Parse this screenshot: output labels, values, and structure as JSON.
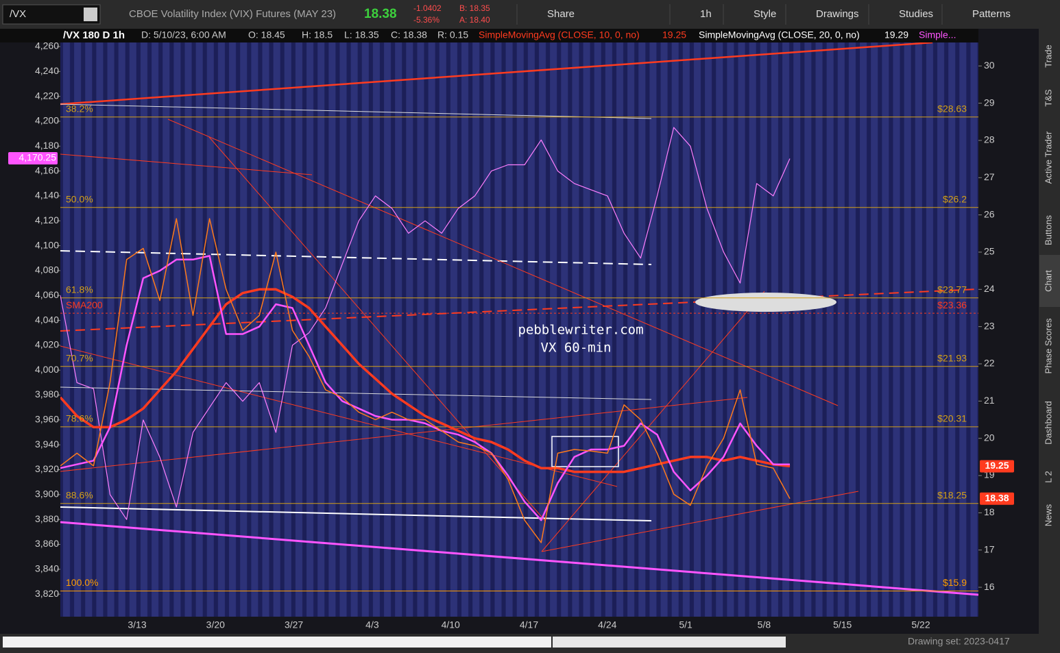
{
  "toolbar": {
    "symbol": "/VX",
    "description": "CBOE Volatility Index (VIX) Futures (MAY 23)",
    "last": "18.38",
    "change": "-1.0402",
    "change_pct": "-5.36%",
    "bid": "B: 18.35",
    "ask": "A: 18.40",
    "buttons": [
      "Share",
      "1h",
      "Style",
      "Drawings",
      "Studies",
      "Patterns"
    ]
  },
  "info_bar": {
    "symbol": "/VX 180 D 1h",
    "items": [
      "D: 5/10/23, 6:00 AM",
      "O: 18.45",
      "H: 18.5",
      "L: 18.35",
      "C: 18.38",
      "R: 0.15"
    ],
    "studies": [
      {
        "label": "SimpleMovingAvg (CLOSE, 10, 0, no)",
        "value": "19.25"
      },
      {
        "label": "SimpleMovingAvg (CLOSE, 20, 0, no)",
        "value": "19.29"
      }
    ],
    "more": "Simple..."
  },
  "side_tabs": [
    "Trade",
    "T&S",
    "Active Trader",
    "Buttons",
    "Chart",
    "Phase Scores",
    "Dashboard",
    "L 2",
    "News"
  ],
  "footer": {
    "drawing_set": "Drawing set: 2023-0417"
  },
  "chart_data": {
    "type": "line",
    "annotations": [
      "pebblewriter.com",
      "VX 60-min"
    ],
    "xticks": [
      "3/13",
      "3/20",
      "3/27",
      "4/3",
      "4/10",
      "4/17",
      "4/24",
      "5/1",
      "5/8",
      "5/15",
      "5/22"
    ],
    "ylim": [
      15.21,
      30.63
    ],
    "yticks": [
      16,
      17,
      18,
      19,
      20,
      21,
      22,
      23,
      24,
      25,
      26,
      27,
      28,
      29,
      30
    ],
    "y2lim": [
      3801.9,
      4263.3
    ],
    "y2ticks": [
      {
        "value": 3820,
        "label": "3,820"
      },
      {
        "value": 3840,
        "label": "3,840"
      },
      {
        "value": 3860,
        "label": "3,860"
      },
      {
        "value": 3880,
        "label": "3,880"
      },
      {
        "value": 3900,
        "label": "3,900"
      },
      {
        "value": 3920,
        "label": "3,920"
      },
      {
        "value": 3940,
        "label": "3,940"
      },
      {
        "value": 3960,
        "label": "3,960"
      },
      {
        "value": 3980,
        "label": "3,980"
      },
      {
        "value": 4000,
        "label": "4,000"
      },
      {
        "value": 4020,
        "label": "4,020"
      },
      {
        "value": 4040,
        "label": "4,040"
      },
      {
        "value": 4060,
        "label": "4,060"
      },
      {
        "value": 4080,
        "label": "4,080"
      },
      {
        "value": 4100,
        "label": "4,100"
      },
      {
        "value": 4120,
        "label": "4,120"
      },
      {
        "value": 4140,
        "label": "4,140"
      },
      {
        "value": 4160,
        "label": "4,160"
      },
      {
        "value": 4180,
        "label": "4,180"
      },
      {
        "value": 4200,
        "label": "4,200"
      },
      {
        "value": 4220,
        "label": "4,220"
      },
      {
        "value": 4240,
        "label": "4,240"
      },
      {
        "value": 4260,
        "label": "4,260"
      }
    ],
    "levels": [
      {
        "name": "38.2%",
        "value": 28.63,
        "value_label": "$28.63",
        "color": "#d4a017"
      },
      {
        "name": "50.0%",
        "value": 26.2,
        "value_label": "$26.2",
        "color": "#d4a017"
      },
      {
        "name": "61.8%",
        "value": 23.77,
        "value_label": "$23.77",
        "color": "#d4a017"
      },
      {
        "name": "SMA200",
        "value": 23.36,
        "value_label": "$23.36",
        "color": "#ff3b1f"
      },
      {
        "name": "70.7%",
        "value": 21.93,
        "value_label": "$21.93",
        "color": "#d4a017"
      },
      {
        "name": "78.6%",
        "value": 20.31,
        "value_label": "$20.31",
        "color": "#d4a017"
      },
      {
        "name": "88.6%",
        "value": 18.25,
        "value_label": "$18.25",
        "color": "#d4a017"
      },
      {
        "name": "100.0%",
        "value": 15.9,
        "value_label": "$15.9",
        "color": "#ff9d00"
      }
    ],
    "price_tags": [
      {
        "value": 19.25,
        "color": "#ff3b1f"
      },
      {
        "value": 18.38,
        "color": "#ff3b1f"
      },
      {
        "value": {
          "value": 4170.25,
          "label": "4,170.25"
        },
        "color": "#ff55ff",
        "axis": "y2"
      }
    ],
    "series": [
      {
        "color": "#ff7fff",
        "width": 1.2,
        "axis": "y2",
        "values": [
          4060,
          3990,
          3985,
          3900,
          3880,
          3960,
          3930,
          3890,
          3950,
          3970,
          3990,
          3975,
          3990,
          3950,
          4020,
          4030,
          4050,
          4085,
          4120,
          4140,
          4130,
          4110,
          4120,
          4110,
          4130,
          4140,
          4160,
          4165,
          4165,
          4185,
          4160,
          4150,
          4145,
          4140,
          4110,
          4090,
          4140,
          4195,
          4180,
          4130,
          4095,
          4070,
          4150,
          4140,
          4170
        ]
      },
      {
        "color": "#ff3b1f",
        "width": 3.5,
        "values": [
          21.1,
          20.6,
          20.3,
          20.3,
          20.5,
          20.8,
          21.3,
          21.8,
          22.4,
          23.0,
          23.6,
          23.9,
          24.0,
          24.0,
          23.8,
          23.5,
          23.0,
          22.5,
          22.0,
          21.6,
          21.2,
          20.9,
          20.6,
          20.4,
          20.2,
          20.0,
          19.9,
          19.7,
          19.4,
          19.2,
          19.2,
          19.1,
          19.1,
          19.1,
          19.1,
          19.2,
          19.3,
          19.4,
          19.5,
          19.5,
          19.4,
          19.5,
          19.4,
          19.3,
          19.25
        ]
      },
      {
        "color": "#ff55ff",
        "width": 2.5,
        "values": [
          19.2,
          19.3,
          19.4,
          20.3,
          22.5,
          24.3,
          24.5,
          24.8,
          24.8,
          24.9,
          22.8,
          22.8,
          23.0,
          23.6,
          23.5,
          22.5,
          21.5,
          21.0,
          20.8,
          20.6,
          20.5,
          20.5,
          20.4,
          20.2,
          20.1,
          19.9,
          19.6,
          19.0,
          18.3,
          17.8,
          18.8,
          19.5,
          19.7,
          19.7,
          19.8,
          20.4,
          20.1,
          19.1,
          18.6,
          19.0,
          19.5,
          20.4,
          19.8,
          19.3,
          19.3
        ]
      },
      {
        "color": "#ff7a1a",
        "width": 1.5,
        "values": [
          19.26,
          19.6,
          19.26,
          21.5,
          24.8,
          25.1,
          23.7,
          25.9,
          23.3,
          25.9,
          24.0,
          22.9,
          23.3,
          25.0,
          22.9,
          22.2,
          21.3,
          21.1,
          20.7,
          20.5,
          20.7,
          20.5,
          20.5,
          20.2,
          19.9,
          19.8,
          19.6,
          18.9,
          17.8,
          17.2,
          19.6,
          19.7,
          19.66,
          19.6,
          20.9,
          20.5,
          19.6,
          18.5,
          18.2,
          19.26,
          20.0,
          21.3,
          19.3,
          19.2,
          18.38
        ]
      }
    ]
  }
}
